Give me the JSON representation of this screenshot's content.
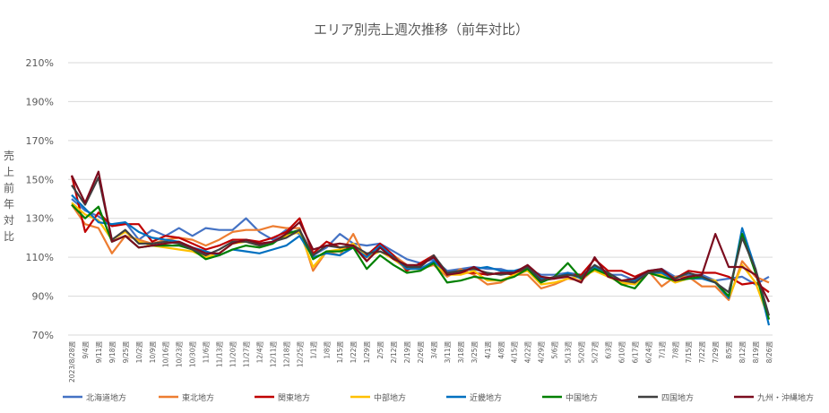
{
  "chart_data": {
    "type": "line",
    "title": "エリア別売上週次推移（前年対比）",
    "ylabel": "売上前年対比",
    "ylabel_chars": [
      "売",
      "上",
      "前",
      "年",
      "対",
      "比"
    ],
    "ylim": [
      70,
      210
    ],
    "yticks": [
      70,
      90,
      110,
      130,
      150,
      170,
      190,
      210
    ],
    "ytick_labels": [
      "70%",
      "90%",
      "110%",
      "130%",
      "150%",
      "170%",
      "190%",
      "210%"
    ],
    "grid": true,
    "legend_position": "bottom",
    "categories": [
      "2023/8/28週",
      "9/4週",
      "9/11週",
      "9/18週",
      "9/25週",
      "10/2週",
      "10/9週",
      "10/16週",
      "10/23週",
      "10/30週",
      "11/6週",
      "11/13週",
      "11/20週",
      "11/27週",
      "12/4週",
      "12/11週",
      "12/18週",
      "12/25週",
      "1/1週",
      "1/8週",
      "1/15週",
      "1/22週",
      "1/29週",
      "2/5週",
      "2/12週",
      "2/19週",
      "2/26週",
      "3/4週",
      "3/11週",
      "3/18週",
      "3/25週",
      "4/1週",
      "4/8週",
      "4/15週",
      "4/22週",
      "4/29週",
      "5/6週",
      "5/13週",
      "5/20週",
      "5/27週",
      "6/3週",
      "6/10週",
      "6/17週",
      "6/24週",
      "7/1週",
      "7/8週",
      "7/15週",
      "7/22週",
      "7/29週",
      "8/5週",
      "8/12週",
      "8/19週",
      "8/26週"
    ],
    "series": [
      {
        "name": "北海道地方",
        "color": "#4472C4",
        "values": [
          140,
          134,
          131,
          126,
          128,
          119,
          124,
          121,
          125,
          121,
          125,
          124,
          124,
          130,
          123,
          119,
          124,
          122,
          111,
          115,
          122,
          117,
          116,
          117,
          113,
          109,
          107,
          109,
          103,
          104,
          105,
          104,
          104,
          102,
          104,
          101,
          101,
          102,
          101,
          105,
          101,
          101,
          98,
          103,
          104,
          100,
          101,
          101,
          98,
          99,
          100,
          96,
          100
        ]
      },
      {
        "name": "東北地方",
        "color": "#ED7D31",
        "values": [
          137,
          127,
          125,
          112,
          121,
          119,
          117,
          119,
          120,
          119,
          116,
          119,
          123,
          124,
          124,
          126,
          125,
          125,
          103,
          113,
          111,
          122,
          108,
          115,
          111,
          106,
          104,
          106,
          100,
          104,
          101,
          96,
          97,
          101,
          101,
          94,
          96,
          99,
          98,
          104,
          101,
          96,
          97,
          103,
          95,
          100,
          100,
          95,
          95,
          88,
          108,
          100,
          97
        ]
      },
      {
        "name": "関東地方",
        "color": "#C00000",
        "values": [
          152,
          123,
          133,
          126,
          127,
          127,
          118,
          121,
          120,
          117,
          114,
          116,
          119,
          119,
          118,
          120,
          123,
          130,
          112,
          118,
          115,
          115,
          111,
          117,
          111,
          103,
          107,
          111,
          101,
          102,
          102,
          101,
          102,
          101,
          104,
          98,
          99,
          101,
          101,
          109,
          103,
          103,
          100,
          103,
          102,
          99,
          103,
          102,
          102,
          100,
          96,
          97,
          92
        ]
      },
      {
        "name": "中部地方",
        "color": "#FFC000",
        "values": [
          138,
          132,
          129,
          119,
          123,
          118,
          116,
          115,
          114,
          113,
          110,
          112,
          117,
          118,
          116,
          118,
          121,
          123,
          105,
          113,
          114,
          117,
          110,
          113,
          109,
          104,
          104,
          107,
          101,
          101,
          103,
          98,
          98,
          101,
          103,
          96,
          97,
          99,
          100,
          103,
          100,
          97,
          96,
          102,
          101,
          97,
          99,
          99,
          98,
          89,
          106,
          97,
          78
        ]
      },
      {
        "name": "近畿地方",
        "color": "#0070C0",
        "values": [
          142,
          135,
          128,
          127,
          128,
          123,
          120,
          119,
          118,
          115,
          113,
          111,
          114,
          113,
          112,
          114,
          116,
          121,
          110,
          112,
          111,
          115,
          110,
          116,
          110,
          104,
          104,
          108,
          102,
          103,
          104,
          105,
          103,
          103,
          105,
          99,
          99,
          102,
          99,
          105,
          102,
          98,
          98,
          102,
          102,
          98,
          99,
          99,
          97,
          89,
          125,
          104,
          75
        ]
      },
      {
        "name": "中国地方",
        "color": "#008000",
        "values": [
          137,
          130,
          136,
          118,
          121,
          115,
          116,
          116,
          116,
          114,
          109,
          111,
          114,
          116,
          115,
          117,
          122,
          124,
          109,
          113,
          113,
          115,
          104,
          111,
          106,
          102,
          103,
          107,
          97,
          98,
          100,
          99,
          98,
          100,
          104,
          97,
          100,
          107,
          99,
          104,
          101,
          96,
          94,
          102,
          100,
          98,
          99,
          100,
          97,
          90,
          122,
          102,
          78
        ]
      },
      {
        "name": "四国地方",
        "color": "#404040",
        "values": [
          147,
          137,
          151,
          119,
          124,
          117,
          117,
          118,
          117,
          114,
          111,
          114,
          118,
          118,
          116,
          118,
          120,
          124,
          111,
          116,
          115,
          116,
          112,
          113,
          110,
          105,
          105,
          111,
          102,
          103,
          104,
          102,
          101,
          102,
          105,
          98,
          100,
          101,
          100,
          106,
          102,
          98,
          97,
          102,
          103,
          99,
          102,
          100,
          97,
          92,
          120,
          104,
          80
        ]
      },
      {
        "name": "九州・沖縄地方",
        "color": "#7B0C1E",
        "values": [
          152,
          138,
          154,
          118,
          121,
          115,
          116,
          117,
          118,
          115,
          112,
          112,
          117,
          119,
          117,
          118,
          122,
          128,
          114,
          116,
          117,
          116,
          108,
          115,
          109,
          106,
          106,
          110,
          101,
          102,
          105,
          101,
          102,
          102,
          106,
          100,
          99,
          100,
          97,
          110,
          100,
          98,
          99,
          103,
          104,
          98,
          100,
          101,
          122,
          105,
          105,
          101,
          87
        ]
      }
    ]
  }
}
